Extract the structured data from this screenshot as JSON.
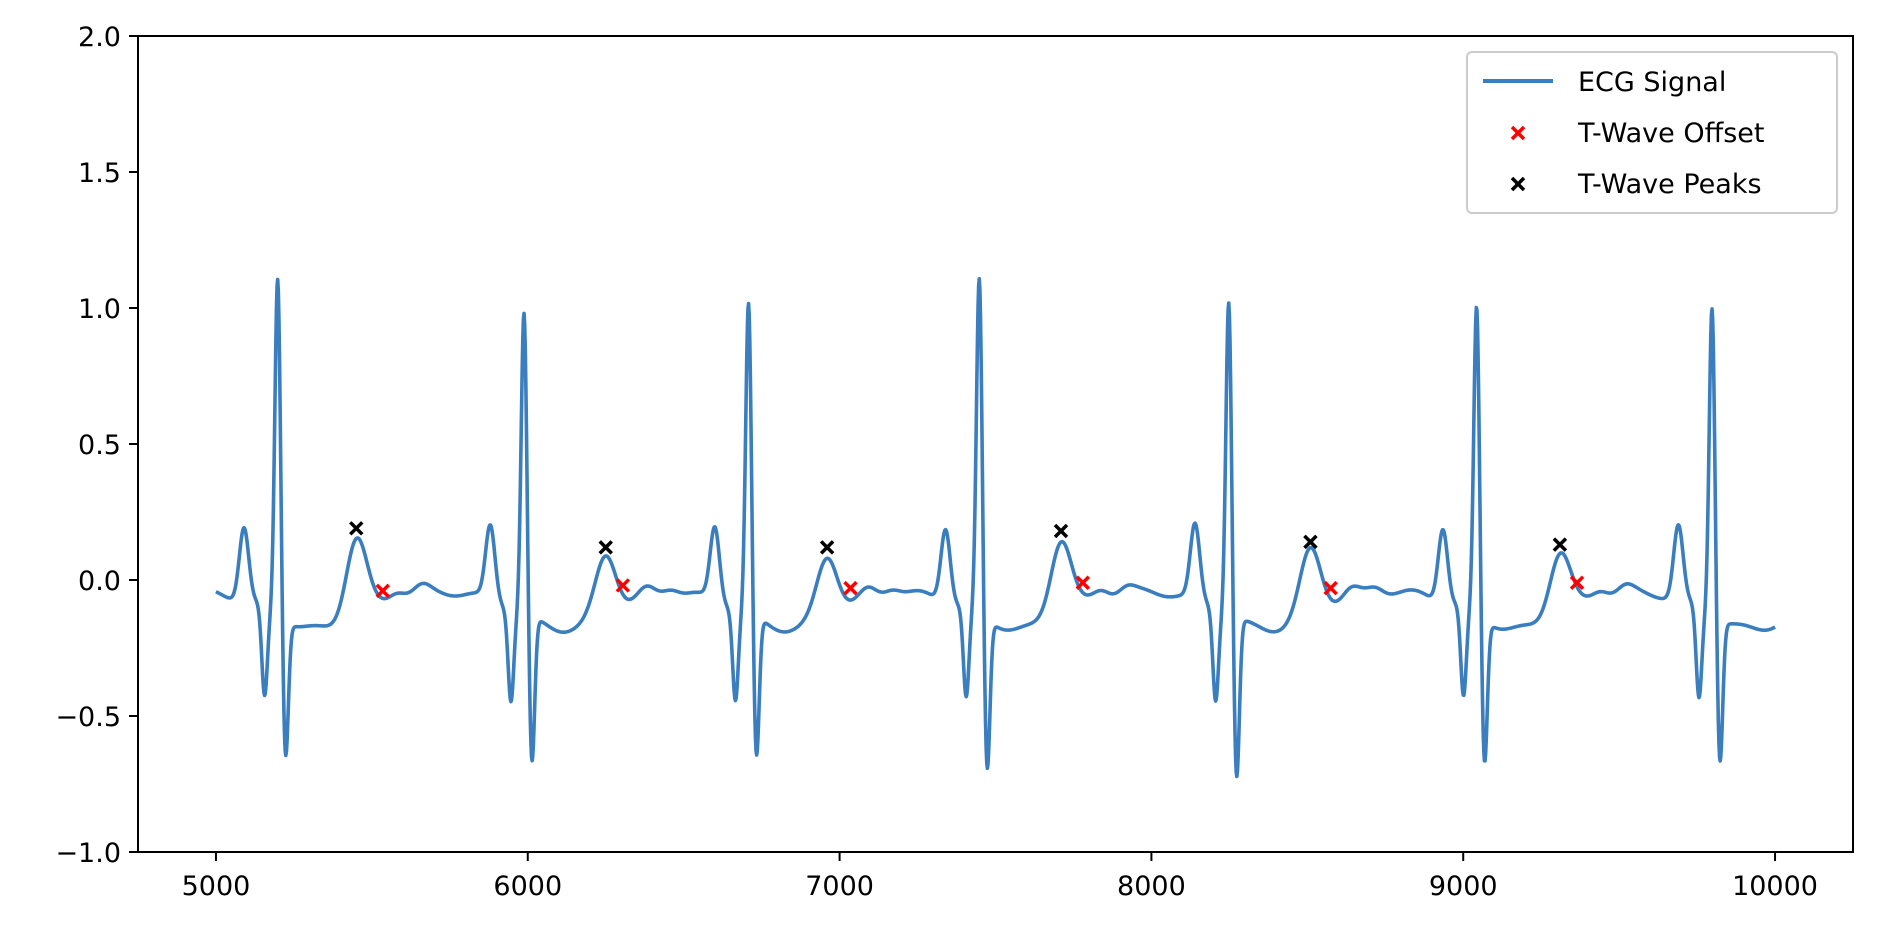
{
  "chart_data": {
    "type": "line",
    "title": "",
    "xlabel": "",
    "ylabel": "",
    "xlim": [
      4750,
      10250
    ],
    "ylim": [
      -1.0,
      2.0
    ],
    "x_ticks": [
      5000,
      6000,
      7000,
      8000,
      9000,
      10000
    ],
    "y_ticks": [
      2.0,
      1.5,
      1.0,
      0.5,
      0.0,
      -0.5,
      -1.0
    ],
    "x_tick_labels": [
      "5000",
      "6000",
      "7000",
      "8000",
      "9000",
      "10000"
    ],
    "y_tick_labels": [
      "2.0",
      "1.5",
      "1.0",
      "0.5",
      "0.0",
      "−0.5",
      "−1.0"
    ],
    "grid": false,
    "legend_position": "top-right",
    "colors": {
      "signal": "#3a7ebf",
      "offset": "#ff0000",
      "peaks": "#000000"
    },
    "series": [
      {
        "name": "ECG Signal",
        "kind": "line",
        "beats": [
          {
            "p": 5090,
            "r": 5198,
            "r_amp": 1.2,
            "s_amp": -0.53,
            "t": 5450,
            "t_amp": 0.19
          },
          {
            "p": 5880,
            "r": 5988,
            "r_amp": 1.07,
            "s_amp": -0.57,
            "t": 6250,
            "t_amp": 0.12
          },
          {
            "p": 6600,
            "r": 6708,
            "r_amp": 1.1,
            "s_amp": -0.55,
            "t": 6960,
            "t_amp": 0.12
          },
          {
            "p": 7340,
            "r": 7448,
            "r_amp": 1.19,
            "s_amp": -0.59,
            "t": 7710,
            "t_amp": 0.18
          },
          {
            "p": 8140,
            "r": 8248,
            "r_amp": 1.12,
            "s_amp": -0.62,
            "t": 8510,
            "t_amp": 0.14
          },
          {
            "p": 8935,
            "r": 9043,
            "r_amp": 1.09,
            "s_amp": -0.56,
            "t": 9310,
            "t_amp": 0.13
          },
          {
            "p": 9690,
            "r": 9798,
            "r_amp": 1.1,
            "s_amp": -0.55
          }
        ]
      },
      {
        "name": "T-Wave Offset",
        "kind": "scatter",
        "x": [
          5535,
          6305,
          7035,
          7780,
          8575,
          9365
        ],
        "y": [
          -0.04,
          -0.02,
          -0.03,
          -0.01,
          -0.03,
          -0.01
        ]
      },
      {
        "name": "T-Wave Peaks",
        "kind": "scatter",
        "x": [
          5450,
          6250,
          6960,
          7710,
          8510,
          9310
        ],
        "y": [
          0.19,
          0.12,
          0.12,
          0.18,
          0.14,
          0.13
        ]
      }
    ]
  }
}
